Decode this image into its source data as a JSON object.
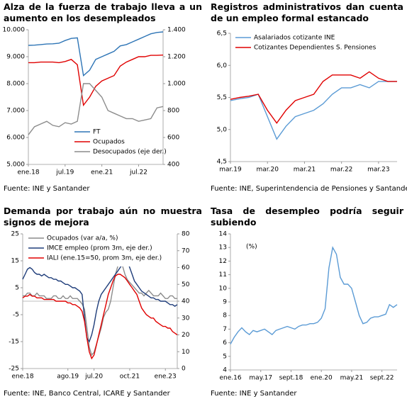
{
  "chart_data": [
    {
      "type": "line",
      "title": "Alza de la fuerza de trabajo lleva a un aumento en los desempleados",
      "source": "Fuente: INE y Santander",
      "legend": "lower right",
      "categories": [
        "ene.18",
        null,
        null,
        null,
        null,
        null,
        "jul.19",
        null,
        null,
        null,
        null,
        null,
        "ene.21",
        null,
        null,
        null,
        null,
        null,
        "jul.22",
        null,
        null,
        null,
        null
      ],
      "ylim": [
        5000,
        10000
      ],
      "yticks": [
        {
          "value": 5000,
          "label": "5.000"
        },
        {
          "value": 6000,
          "label": "6.000"
        },
        {
          "value": 7000,
          "label": "7.000"
        },
        {
          "value": 8000,
          "label": "8.000"
        },
        {
          "value": 9000,
          "label": "9.000"
        },
        {
          "value": 10000,
          "label": "10.000"
        }
      ],
      "y2lim": [
        400,
        1400
      ],
      "y2ticks": [
        400,
        600,
        800,
        {
          "value": 1000,
          "label": "1.000"
        },
        {
          "value": 1200,
          "label": "1.200"
        },
        {
          "value": 1400,
          "label": "1.400"
        }
      ],
      "series": [
        {
          "name": "FT",
          "color": "#2e75b6",
          "values": [
            9420,
            9430,
            9450,
            9470,
            9480,
            9500,
            9600,
            9680,
            9700,
            8300,
            8500,
            8900,
            9000,
            9100,
            9200,
            9400,
            9450,
            9550,
            9650,
            9750,
            9850,
            9900,
            9920
          ]
        },
        {
          "name": "Ocupados",
          "color": "#e00000",
          "values": [
            8780,
            8780,
            8800,
            8800,
            8800,
            8780,
            8820,
            8900,
            8700,
            7200,
            7500,
            7900,
            8100,
            8200,
            8300,
            8650,
            8800,
            8900,
            9000,
            9000,
            9050,
            9050,
            9060
          ]
        },
        {
          "name": "Desocupados (eje der.)",
          "color": "#8c8c8c",
          "axis": "y2",
          "values": [
            620,
            680,
            700,
            720,
            690,
            680,
            710,
            700,
            720,
            1000,
            1000,
            950,
            900,
            800,
            780,
            760,
            740,
            740,
            720,
            730,
            740,
            820,
            830
          ]
        }
      ]
    },
    {
      "type": "line",
      "title": "Registros administrativos dan cuenta de un empleo formal estancado",
      "source": "Fuente: INE, Superintendencia de Pensiones y Santander",
      "legend": "upper left",
      "categories": [
        "mar.19",
        null,
        null,
        null,
        "mar.20",
        null,
        null,
        null,
        "mar.21",
        null,
        null,
        null,
        "mar.22",
        null,
        null,
        null,
        "mar.23",
        null,
        null
      ],
      "ylim": [
        4.5,
        6.5
      ],
      "yticks": [
        {
          "value": 4.5,
          "label": "4,5"
        },
        {
          "value": 5,
          "label": "5,0"
        },
        {
          "value": 5.5,
          "label": "5,5"
        },
        {
          "value": 6,
          "label": "6,0"
        },
        {
          "value": 6.5,
          "label": "6,5"
        }
      ],
      "series": [
        {
          "name": "Asalariados cotizante INE",
          "color": "#5b9bd5",
          "values": [
            5.45,
            5.48,
            5.5,
            5.55,
            5.2,
            4.85,
            5.05,
            5.2,
            5.25,
            5.3,
            5.4,
            5.55,
            5.65,
            5.65,
            5.7,
            5.65,
            5.75,
            5.75,
            5.75
          ]
        },
        {
          "name": "Cotizantes Dependientes S. Pensiones",
          "color": "#e00000",
          "values": [
            5.47,
            5.5,
            5.52,
            5.55,
            5.3,
            5.1,
            5.3,
            5.45,
            5.5,
            5.55,
            5.75,
            5.85,
            5.85,
            5.85,
            5.8,
            5.9,
            5.8,
            5.75,
            5.75
          ]
        }
      ]
    },
    {
      "type": "line",
      "title": "Demanda por trabajo aún no muestra signos de mejora",
      "source": "Fuente: INE, Banco Central, ICARE y Santander",
      "legend": "upper center",
      "categories": [
        "ene.18",
        null,
        null,
        null,
        null,
        null,
        null,
        null,
        null,
        null,
        null,
        null,
        null,
        null,
        null,
        null,
        null,
        null,
        null,
        "ago.19",
        null,
        null,
        null,
        null,
        null,
        null,
        null,
        null,
        null,
        null,
        "jul.20",
        null,
        null,
        null,
        null,
        null,
        null,
        null,
        null,
        null,
        null,
        null,
        null,
        null,
        null,
        "oct.21",
        null,
        null,
        null,
        null,
        null,
        null,
        null,
        null,
        null,
        null,
        null,
        null,
        null,
        null,
        "ene.23",
        null,
        null,
        null,
        null,
        null
      ],
      "ylim": [
        -25,
        25
      ],
      "yticks": [
        -25,
        -15,
        -5,
        5,
        15,
        25
      ],
      "y2lim": [
        0,
        80
      ],
      "y2ticks": [
        0,
        10,
        20,
        30,
        40,
        50,
        60,
        70,
        80
      ],
      "series": [
        {
          "name": "Ocupados (var a/a, %)",
          "color": "#8c8c8c",
          "values": [
            2,
            2,
            3,
            3,
            2,
            2,
            3,
            2,
            2,
            2,
            1,
            1,
            1,
            2,
            2,
            1,
            1,
            2,
            1,
            1,
            2,
            1,
            1,
            1,
            0,
            -1,
            -3,
            -10,
            -17,
            -20,
            -19,
            -16,
            -13,
            -10,
            -6,
            -4,
            -3,
            0,
            5,
            10,
            13,
            15,
            13,
            10,
            8,
            7,
            6,
            5,
            4,
            3,
            3,
            2,
            3,
            4,
            3,
            2,
            2,
            2,
            3,
            2,
            1,
            1,
            2,
            2,
            1,
            1
          ]
        },
        {
          "name": "IMCE empleo (prom 3m, eje der.)",
          "color": "#1f3d7a",
          "axis": "y2",
          "values": [
            53,
            56,
            59,
            60,
            59,
            57,
            56,
            56,
            55,
            56,
            55,
            54,
            54,
            53,
            53,
            52,
            52,
            51,
            50,
            50,
            49,
            48,
            48,
            47,
            46,
            44,
            30,
            18,
            16,
            20,
            26,
            34,
            40,
            44,
            46,
            48,
            50,
            52,
            54,
            56,
            58,
            60,
            62,
            63,
            64,
            60,
            56,
            52,
            50,
            48,
            46,
            45,
            44,
            43,
            42,
            42,
            41,
            41,
            40,
            40,
            40,
            39,
            38,
            38,
            37,
            38
          ]
        },
        {
          "name": "IALI (ene.15=50, prom 3m, eje der.)",
          "color": "#e00000",
          "axis": "y2",
          "values": [
            42,
            43,
            43,
            44,
            43,
            43,
            42,
            42,
            42,
            41,
            41,
            41,
            41,
            41,
            40,
            40,
            40,
            40,
            40,
            39,
            39,
            38,
            38,
            37,
            36,
            34,
            28,
            18,
            10,
            6,
            8,
            14,
            20,
            26,
            32,
            38,
            44,
            48,
            52,
            55,
            56,
            56,
            55,
            54,
            52,
            50,
            48,
            46,
            44,
            40,
            36,
            34,
            32,
            31,
            30,
            30,
            28,
            27,
            26,
            25,
            25,
            24,
            24,
            22,
            21,
            20
          ]
        }
      ]
    },
    {
      "type": "line",
      "title": "Tasa de desempleo podría seguir subiendo",
      "annotation": "(%)",
      "categories": [
        "ene.16",
        null,
        null,
        null,
        null,
        null,
        null,
        null,
        "may.17",
        null,
        null,
        null,
        null,
        null,
        null,
        null,
        "sept.18",
        null,
        null,
        null,
        null,
        null,
        null,
        null,
        "ene.20",
        null,
        null,
        null,
        null,
        null,
        null,
        null,
        "may.21",
        null,
        null,
        null,
        null,
        null,
        null,
        null,
        "sept.22",
        null,
        null,
        null,
        null
      ],
      "ylim": [
        4,
        14
      ],
      "yticks": [
        4,
        5,
        6,
        7,
        8,
        9,
        10,
        11,
        12,
        13,
        14
      ],
      "series": [
        {
          "color": "#5b9bd5",
          "values": [
            5.9,
            6.4,
            6.8,
            7.1,
            6.8,
            6.6,
            6.9,
            6.8,
            6.9,
            7.0,
            6.8,
            6.6,
            6.9,
            7.0,
            7.1,
            7.2,
            7.1,
            7.0,
            7.2,
            7.3,
            7.3,
            7.4,
            7.4,
            7.5,
            7.8,
            8.5,
            11.5,
            13.0,
            12.5,
            10.8,
            10.3,
            10.3,
            10.0,
            9.0,
            8.0,
            7.4,
            7.5,
            7.8,
            7.9,
            7.9,
            8.0,
            8.1,
            8.8,
            8.6,
            8.8
          ]
        }
      ],
      "source": "Fuente: INE y Santander"
    }
  ]
}
